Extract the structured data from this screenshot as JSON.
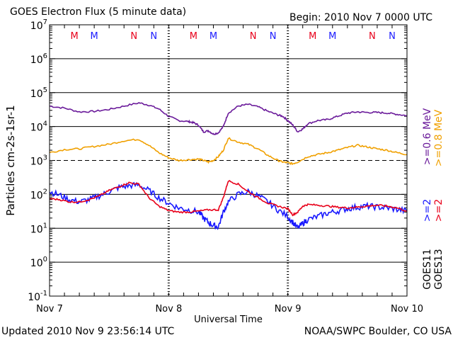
{
  "header": {
    "title": "GOES Electron Flux (5 minute data)",
    "begin": "Begin: 2010 Nov 7 0000 UTC"
  },
  "footer": {
    "updated": "Updated 2010 Nov  9 23:56:14 UTC",
    "credit": "NOAA/SWPC Boulder, CO USA"
  },
  "colors": {
    "red": "#e8001a",
    "blue": "#1a1aff",
    "purple": "#6a1a9a",
    "orange": "#f0a000"
  },
  "chart_data": {
    "type": "line",
    "title": "GOES Electron Flux (5 minute data)",
    "xlabel": "Universal Time",
    "ylabel": "Particles cm-2s-1sr-1",
    "yscale": "log",
    "ylim": [
      0.1,
      10000000
    ],
    "y_ticks": [
      {
        "base": "10",
        "exp": "7",
        "value": 10000000
      },
      {
        "base": "10",
        "exp": "6",
        "value": 1000000
      },
      {
        "base": "10",
        "exp": "5",
        "value": 100000
      },
      {
        "base": "10",
        "exp": "4",
        "value": 10000
      },
      {
        "base": "10",
        "exp": "3",
        "value": 1000
      },
      {
        "base": "10",
        "exp": "2",
        "value": 100
      },
      {
        "base": "10",
        "exp": "1",
        "value": 10
      },
      {
        "base": "10",
        "exp": "0",
        "value": 1
      },
      {
        "base": "10",
        "exp": "-1",
        "value": 0.1
      }
    ],
    "xlim_hours": [
      0,
      72
    ],
    "x_ticks": [
      {
        "label": "Nov 7",
        "hour": 0
      },
      {
        "label": "Nov 8",
        "hour": 24
      },
      {
        "label": "Nov 9",
        "hour": 48
      },
      {
        "label": "Nov 10",
        "hour": 72
      }
    ],
    "threshold": 1000,
    "markers": [
      {
        "label": "M",
        "hour": 5,
        "color": "red"
      },
      {
        "label": "M",
        "hour": 9,
        "color": "blue"
      },
      {
        "label": "N",
        "hour": 17,
        "color": "red"
      },
      {
        "label": "N",
        "hour": 21,
        "color": "blue"
      },
      {
        "label": "M",
        "hour": 29,
        "color": "red"
      },
      {
        "label": "M",
        "hour": 33,
        "color": "blue"
      },
      {
        "label": "N",
        "hour": 41,
        "color": "red"
      },
      {
        "label": "N",
        "hour": 45,
        "color": "blue"
      },
      {
        "label": "M",
        "hour": 53,
        "color": "red"
      },
      {
        "label": "M",
        "hour": 57,
        "color": "blue"
      },
      {
        "label": "N",
        "hour": 65,
        "color": "red"
      },
      {
        "label": "N",
        "hour": 69,
        "color": "blue"
      }
    ],
    "legend": [
      {
        "text": ">=0.6  MeV",
        "color": "purple"
      },
      {
        "text": ">=0.8  MeV",
        "color": "orange"
      },
      {
        "text": ">=2",
        "color": "blue"
      },
      {
        "text": ">=2",
        "color": "red"
      },
      {
        "text": "GOES11",
        "color": "black"
      },
      {
        "text": "GOES13",
        "color": "black"
      }
    ],
    "series": [
      {
        "name": "GOES11 >=0.6 MeV",
        "color": "purple",
        "points": [
          [
            0,
            40000
          ],
          [
            3,
            35000
          ],
          [
            6,
            27000
          ],
          [
            9,
            28000
          ],
          [
            12,
            32000
          ],
          [
            15,
            40000
          ],
          [
            18,
            50000
          ],
          [
            20,
            43000
          ],
          [
            22,
            33000
          ],
          [
            24,
            20000
          ],
          [
            26,
            15000
          ],
          [
            28,
            14000
          ],
          [
            29,
            13000
          ],
          [
            30,
            11000
          ],
          [
            31,
            7000
          ],
          [
            32,
            7500
          ],
          [
            33,
            6000
          ],
          [
            34,
            6500
          ],
          [
            35,
            10000
          ],
          [
            36,
            25000
          ],
          [
            38,
            40000
          ],
          [
            40,
            45000
          ],
          [
            42,
            38000
          ],
          [
            44,
            28000
          ],
          [
            46,
            22000
          ],
          [
            47,
            20000
          ],
          [
            48,
            15000
          ],
          [
            49,
            11000
          ],
          [
            50,
            7000
          ],
          [
            51,
            8500
          ],
          [
            52,
            12000
          ],
          [
            54,
            15000
          ],
          [
            56,
            16000
          ],
          [
            58,
            20000
          ],
          [
            60,
            25000
          ],
          [
            62,
            27000
          ],
          [
            64,
            26000
          ],
          [
            66,
            26000
          ],
          [
            68,
            25000
          ],
          [
            70,
            23000
          ],
          [
            72,
            21000
          ]
        ]
      },
      {
        "name": "GOES13 >=0.8 MeV",
        "color": "orange",
        "points": [
          [
            0,
            1700
          ],
          [
            3,
            2100
          ],
          [
            6,
            2200
          ],
          [
            9,
            2600
          ],
          [
            12,
            3000
          ],
          [
            15,
            3800
          ],
          [
            18,
            4200
          ],
          [
            20,
            2800
          ],
          [
            22,
            1700
          ],
          [
            24,
            1200
          ],
          [
            26,
            1000
          ],
          [
            28,
            1050
          ],
          [
            30,
            1100
          ],
          [
            31,
            1000
          ],
          [
            32,
            900
          ],
          [
            33,
            1000
          ],
          [
            34,
            1300
          ],
          [
            35,
            2000
          ],
          [
            36,
            4500
          ],
          [
            38,
            3500
          ],
          [
            40,
            3000
          ],
          [
            42,
            2200
          ],
          [
            44,
            1400
          ],
          [
            46,
            1000
          ],
          [
            47,
            900
          ],
          [
            48,
            850
          ],
          [
            49,
            800
          ],
          [
            50,
            900
          ],
          [
            52,
            1300
          ],
          [
            54,
            1500
          ],
          [
            56,
            1700
          ],
          [
            58,
            2000
          ],
          [
            60,
            2400
          ],
          [
            62,
            2800
          ],
          [
            64,
            2500
          ],
          [
            66,
            2200
          ],
          [
            68,
            2000
          ],
          [
            70,
            1700
          ],
          [
            72,
            1500
          ]
        ]
      },
      {
        "name": "GOES11 >=2 MeV",
        "color": "blue",
        "points": [
          [
            0,
            120
          ],
          [
            2,
            95
          ],
          [
            4,
            70
          ],
          [
            6,
            60
          ],
          [
            8,
            70
          ],
          [
            10,
            90
          ],
          [
            12,
            120
          ],
          [
            14,
            160
          ],
          [
            16,
            180
          ],
          [
            18,
            190
          ],
          [
            20,
            130
          ],
          [
            22,
            80
          ],
          [
            24,
            55
          ],
          [
            26,
            40
          ],
          [
            28,
            35
          ],
          [
            30,
            30
          ],
          [
            31,
            20
          ],
          [
            32,
            15
          ],
          [
            33,
            12
          ],
          [
            34,
            11
          ],
          [
            35,
            30
          ],
          [
            36,
            60
          ],
          [
            38,
            100
          ],
          [
            40,
            120
          ],
          [
            42,
            90
          ],
          [
            44,
            60
          ],
          [
            46,
            35
          ],
          [
            48,
            22
          ],
          [
            49,
            15
          ],
          [
            50,
            10
          ],
          [
            51,
            14
          ],
          [
            52,
            18
          ],
          [
            54,
            22
          ],
          [
            56,
            28
          ],
          [
            58,
            32
          ],
          [
            60,
            38
          ],
          [
            62,
            42
          ],
          [
            64,
            45
          ],
          [
            66,
            42
          ],
          [
            68,
            40
          ],
          [
            70,
            36
          ],
          [
            72,
            32
          ]
        ]
      },
      {
        "name": "GOES13 >=2 MeV",
        "color": "red",
        "points": [
          [
            0,
            75
          ],
          [
            2,
            70
          ],
          [
            4,
            60
          ],
          [
            6,
            60
          ],
          [
            8,
            70
          ],
          [
            10,
            90
          ],
          [
            12,
            130
          ],
          [
            14,
            170
          ],
          [
            16,
            220
          ],
          [
            18,
            200
          ],
          [
            20,
            80
          ],
          [
            22,
            45
          ],
          [
            24,
            33
          ],
          [
            26,
            30
          ],
          [
            28,
            30
          ],
          [
            30,
            32
          ],
          [
            32,
            35
          ],
          [
            34,
            35
          ],
          [
            35,
            80
          ],
          [
            36,
            250
          ],
          [
            38,
            200
          ],
          [
            40,
            120
          ],
          [
            42,
            80
          ],
          [
            44,
            55
          ],
          [
            46,
            45
          ],
          [
            48,
            38
          ],
          [
            49,
            25
          ],
          [
            50,
            30
          ],
          [
            51,
            45
          ],
          [
            52,
            50
          ],
          [
            54,
            48
          ],
          [
            56,
            45
          ],
          [
            58,
            42
          ],
          [
            60,
            40
          ],
          [
            62,
            42
          ],
          [
            64,
            45
          ],
          [
            66,
            48
          ],
          [
            68,
            45
          ],
          [
            70,
            40
          ],
          [
            72,
            32
          ]
        ]
      }
    ]
  }
}
